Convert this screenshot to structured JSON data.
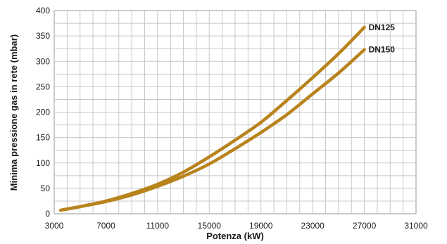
{
  "chart_data": {
    "type": "line",
    "title": "",
    "xlabel": "Potenza (kW)",
    "ylabel": "Minima pressione gas in rete (mbar)",
    "xlim": [
      3000,
      31000
    ],
    "ylim": [
      0,
      400
    ],
    "x_ticks": [
      "3000",
      "7000",
      "11000",
      "15000",
      "19000",
      "23000",
      "27000",
      "31000"
    ],
    "y_ticks": [
      "0",
      "50",
      "100",
      "150",
      "200",
      "250",
      "300",
      "350",
      "400"
    ],
    "grid": true,
    "legend": "inline labels at line ends",
    "line_color": "#b8831c",
    "series": [
      {
        "name": "DN125",
        "x": [
          3500,
          5000,
          7000,
          9000,
          11000,
          13000,
          15000,
          17000,
          19000,
          21000,
          23000,
          25000,
          27000
        ],
        "y": [
          7,
          14,
          25,
          40,
          58,
          82,
          112,
          145,
          180,
          223,
          268,
          315,
          367
        ]
      },
      {
        "name": "DN150",
        "x": [
          3500,
          5000,
          7000,
          9000,
          11000,
          13000,
          15000,
          17000,
          19000,
          21000,
          23000,
          25000,
          27000
        ],
        "y": [
          7,
          14,
          24,
          37,
          54,
          74,
          98,
          128,
          160,
          195,
          236,
          277,
          323
        ]
      }
    ]
  }
}
